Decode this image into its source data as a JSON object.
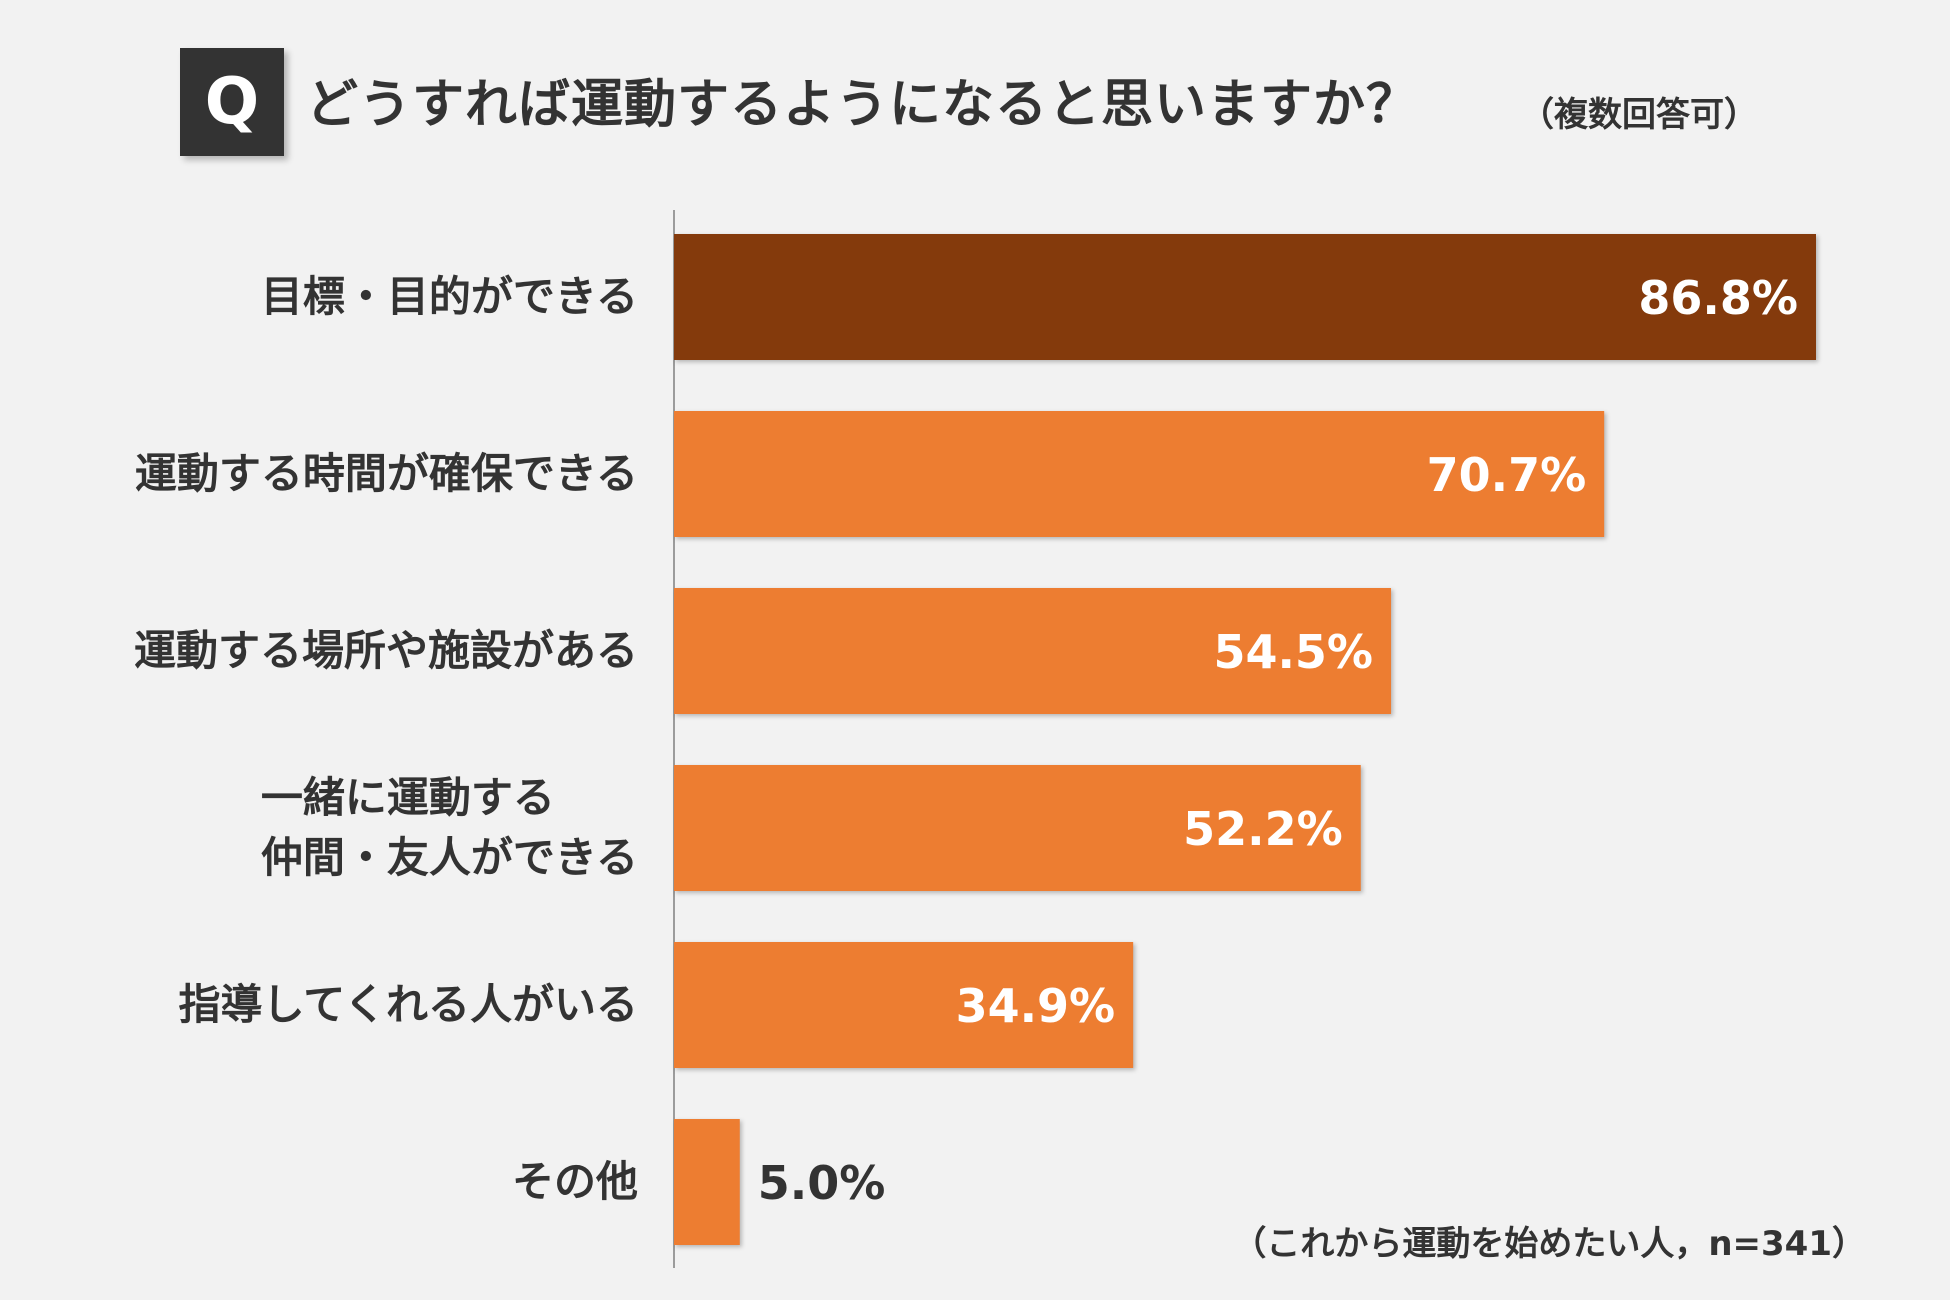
{
  "header": {
    "badge": "Q",
    "question": "どうすれば運動するようになると思いますか？",
    "note": "（複数回答可）"
  },
  "footnote": "（これから運動を始めたい人，n=341）",
  "colors": {
    "highlight": "#843a0c",
    "bar": "#ed7d31",
    "axis": "#7f7f7f"
  },
  "chart_data": {
    "type": "bar",
    "orientation": "horizontal",
    "categories": [
      [
        "目標・目的ができる"
      ],
      [
        "運動する時間が確保できる"
      ],
      [
        "運動する場所や施設がある"
      ],
      [
        "一緒に運動する",
        "仲間・友人ができる"
      ],
      [
        "指導してくれる人がいる"
      ],
      [
        "その他"
      ]
    ],
    "values": [
      86.8,
      70.7,
      54.5,
      52.2,
      34.9,
      5.0
    ],
    "value_labels": [
      "86.8%",
      "70.7%",
      "54.5%",
      "52.2%",
      "34.9%",
      "5.0%"
    ],
    "unit": "%",
    "xlim": [
      0,
      100
    ],
    "highlight_index": 0,
    "grid": false,
    "legend": false
  }
}
